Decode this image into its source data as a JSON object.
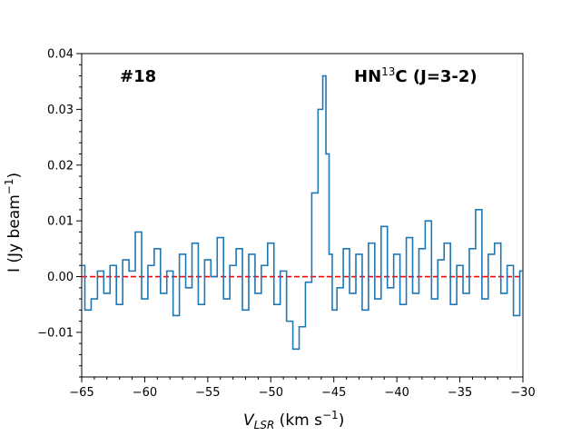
{
  "chart_data": {
    "type": "line",
    "style": "step",
    "series": [
      {
        "name": "HN13C (J=3-2) spectrum",
        "color": "#1f77b4",
        "x": [
          -65.0,
          -64.5,
          -64.0,
          -63.5,
          -63.0,
          -62.5,
          -62.0,
          -61.5,
          -61.0,
          -60.5,
          -60.0,
          -59.5,
          -59.0,
          -58.5,
          -58.0,
          -57.5,
          -57.0,
          -56.5,
          -56.0,
          -55.5,
          -55.0,
          -54.5,
          -54.0,
          -53.5,
          -53.0,
          -52.5,
          -52.0,
          -51.5,
          -51.0,
          -50.5,
          -50.0,
          -49.5,
          -49.0,
          -48.5,
          -48.0,
          -47.5,
          -47.0,
          -46.5,
          -46.0,
          -45.75,
          -45.5,
          -45.25,
          -45.0,
          -44.5,
          -44.0,
          -43.5,
          -43.0,
          -42.5,
          -42.0,
          -41.5,
          -41.0,
          -40.5,
          -40.0,
          -39.5,
          -39.0,
          -38.5,
          -38.0,
          -37.5,
          -37.0,
          -36.5,
          -36.0,
          -35.5,
          -35.0,
          -34.5,
          -34.0,
          -33.5,
          -33.0,
          -32.5,
          -32.0,
          -31.5,
          -31.0,
          -30.5,
          -30.0
        ],
        "y": [
          0.002,
          -0.006,
          -0.004,
          0.001,
          -0.003,
          0.002,
          -0.005,
          0.003,
          0.001,
          0.008,
          -0.004,
          0.002,
          0.005,
          -0.003,
          0.001,
          -0.007,
          0.004,
          -0.002,
          0.006,
          -0.005,
          0.003,
          0.0,
          0.007,
          -0.004,
          0.002,
          0.005,
          -0.006,
          0.004,
          -0.003,
          0.002,
          0.006,
          -0.005,
          0.001,
          -0.008,
          -0.013,
          -0.009,
          -0.001,
          0.015,
          0.03,
          0.036,
          0.022,
          0.004,
          -0.006,
          -0.002,
          0.005,
          -0.003,
          0.004,
          -0.006,
          0.006,
          -0.004,
          0.009,
          -0.002,
          0.004,
          -0.005,
          0.007,
          -0.003,
          0.005,
          0.01,
          -0.004,
          0.003,
          0.006,
          -0.005,
          0.002,
          -0.003,
          0.005,
          0.012,
          -0.004,
          0.004,
          0.006,
          -0.003,
          0.002,
          -0.007,
          0.001
        ]
      }
    ],
    "reference_line": {
      "y": 0.0,
      "color": "#ff0000",
      "style": "dashed"
    },
    "xlim": [
      -65,
      -30
    ],
    "ylim": [
      -0.018,
      0.04
    ],
    "xticks": [
      -65,
      -60,
      -55,
      -50,
      -45,
      -40,
      -35,
      -30
    ],
    "yticks": [
      -0.01,
      0.0,
      0.01,
      0.02,
      0.03,
      0.04
    ],
    "xtick_labels": [
      "−65",
      "−60",
      "−55",
      "−50",
      "−45",
      "−40",
      "−35",
      "−30"
    ],
    "ytick_labels": [
      "−0.01",
      "0.00",
      "0.01",
      "0.02",
      "0.03",
      "0.04"
    ],
    "xlabel_main": "V",
    "xlabel_sub": "LSR",
    "xlabel_rest": " (km s",
    "xlabel_exp": "−1",
    "xlabel_close": ")",
    "ylabel_main": "I (Jy beam",
    "ylabel_exp": "−1",
    "ylabel_close": ")",
    "annotation_left": "#18",
    "annotation_right_pre": "HN",
    "annotation_right_sup": "13",
    "annotation_right_post": "C (J=3-2)"
  }
}
